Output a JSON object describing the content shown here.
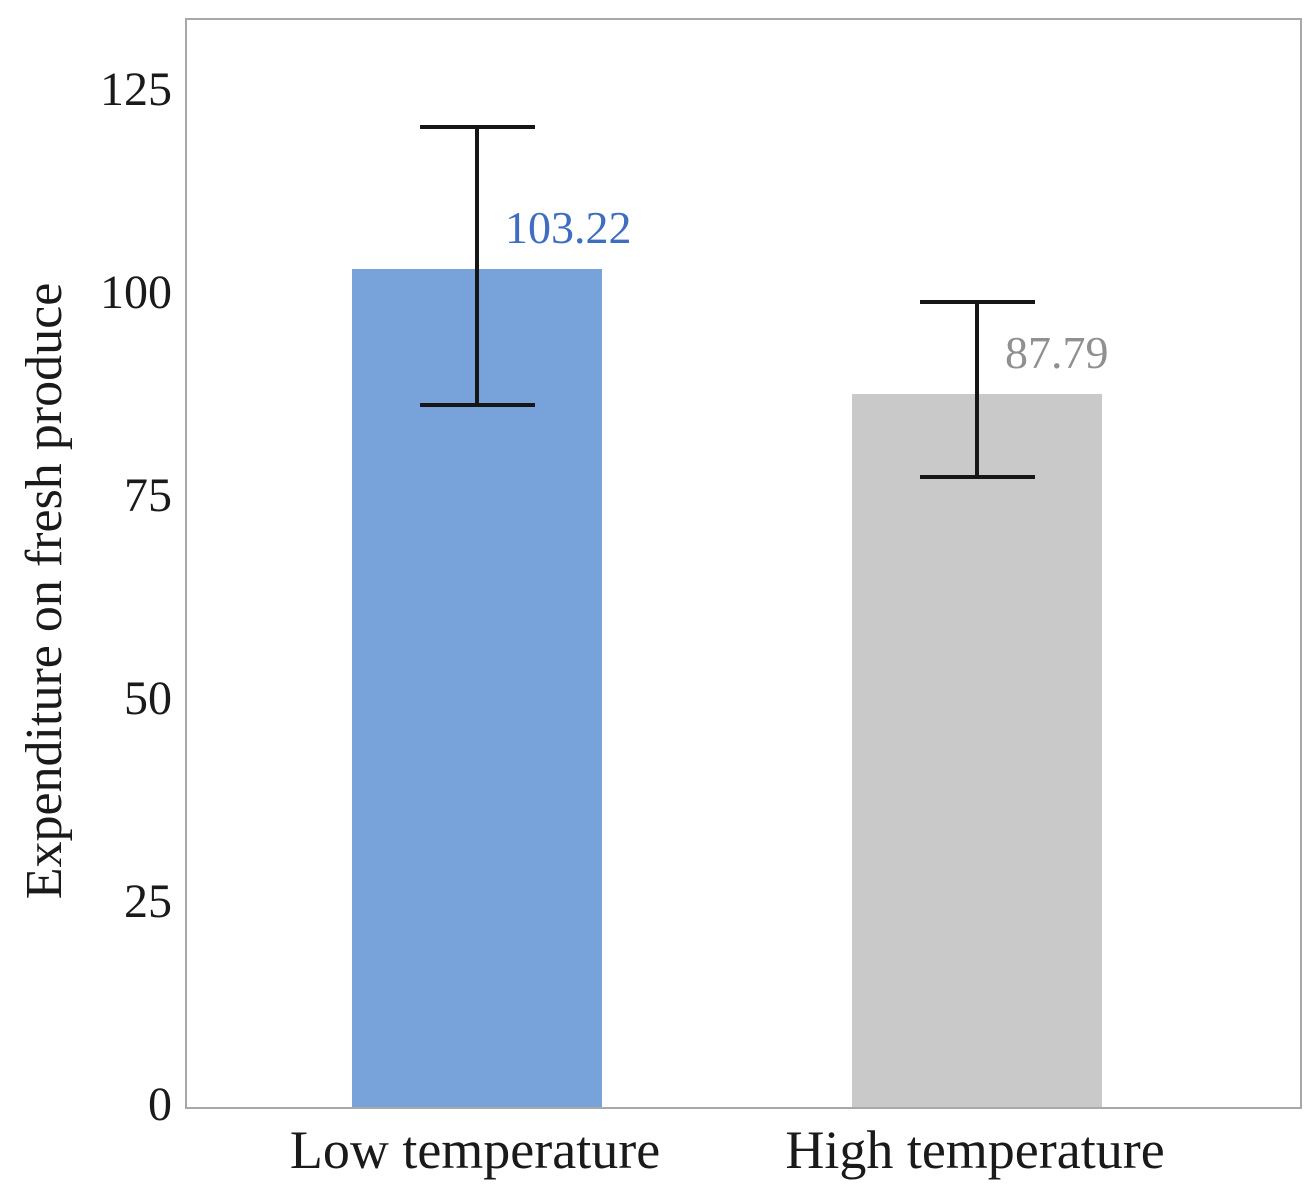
{
  "chart_data": {
    "type": "bar",
    "title": "",
    "xlabel": "",
    "ylabel": "Expenditure on fresh produce",
    "ylim": [
      0,
      133.9
    ],
    "yticks": [
      0,
      25,
      50,
      75,
      100,
      125
    ],
    "grid": false,
    "legend": false,
    "categories": [
      "Low temperature",
      "High temperature"
    ],
    "values": [
      103.22,
      87.79
    ],
    "value_labels": [
      "103.22",
      "87.79"
    ],
    "error_upper": [
      17.7,
      11.6
    ],
    "error_lower": [
      17.0,
      10.4
    ],
    "bar_colors": [
      "#78a3da",
      "#c9c9c9"
    ],
    "value_label_colors": [
      "#3f6dbf",
      "#909090"
    ],
    "error_bar_color": "#161616",
    "frame_color": "#a8a8a8"
  }
}
